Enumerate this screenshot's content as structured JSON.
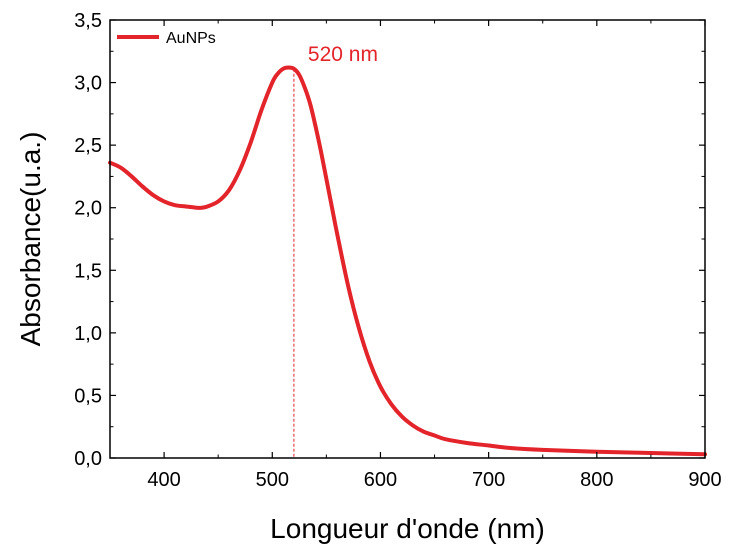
{
  "chart_data": {
    "type": "line",
    "title": "",
    "xlabel": "Longueur d'onde (nm)",
    "ylabel": "Absorbance(u.a.)",
    "xlim": [
      350,
      900
    ],
    "ylim": [
      0,
      3.5
    ],
    "xticks": [
      400,
      500,
      600,
      700,
      800,
      900
    ],
    "xtick_labels": [
      "400",
      "500",
      "600",
      "700",
      "800",
      "900"
    ],
    "yticks": [
      0,
      0.5,
      1.0,
      1.5,
      2.0,
      2.5,
      3.0,
      3.5
    ],
    "ytick_labels": [
      "0,0",
      "0,5",
      "1,0",
      "1,5",
      "2,0",
      "2,5",
      "3,0",
      "3,5"
    ],
    "grid": false,
    "legend_position": "top-left",
    "series": [
      {
        "name": "AuNPs",
        "color": "#e3242b",
        "x": [
          350,
          360,
          370,
          380,
          390,
          400,
          410,
          420,
          430,
          435,
          440,
          450,
          460,
          470,
          480,
          490,
          500,
          505,
          510,
          515,
          520,
          525,
          530,
          535,
          540,
          545,
          550,
          555,
          560,
          570,
          580,
          590,
          600,
          610,
          620,
          630,
          640,
          650,
          660,
          680,
          700,
          720,
          750,
          800,
          850,
          900
        ],
        "y": [
          2.36,
          2.32,
          2.25,
          2.17,
          2.1,
          2.05,
          2.02,
          2.01,
          2.0,
          2.0,
          2.01,
          2.05,
          2.14,
          2.3,
          2.52,
          2.78,
          3.0,
          3.07,
          3.11,
          3.12,
          3.11,
          3.06,
          2.96,
          2.83,
          2.65,
          2.45,
          2.23,
          2.01,
          1.79,
          1.38,
          1.04,
          0.77,
          0.57,
          0.43,
          0.33,
          0.26,
          0.21,
          0.18,
          0.15,
          0.12,
          0.1,
          0.08,
          0.065,
          0.05,
          0.04,
          0.03
        ]
      }
    ],
    "annotations": [
      {
        "text": "520 nm",
        "x": 520,
        "color": "#e3242b"
      }
    ]
  }
}
